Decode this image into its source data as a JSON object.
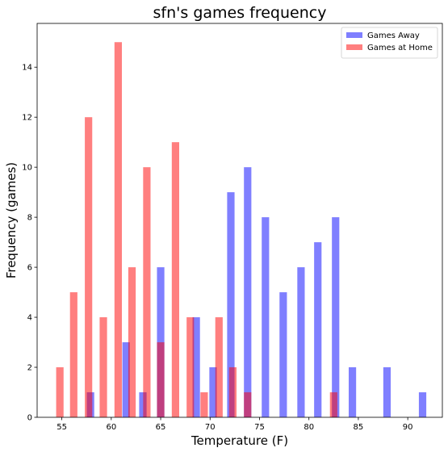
{
  "chart_data": {
    "type": "bar",
    "title": "sfn's games frequency",
    "xlabel": "Temperature (F)",
    "ylabel": "Frequency (games)",
    "xlim": [
      52.5,
      93.5
    ],
    "ylim": [
      0,
      15.75
    ],
    "xticks": [
      55,
      60,
      65,
      70,
      75,
      80,
      85,
      90
    ],
    "yticks": [
      0,
      2,
      4,
      6,
      8,
      10,
      12,
      14
    ],
    "legend_position": "top-right",
    "bar_width": 0.75,
    "series": [
      {
        "name": "Games Away",
        "color": "#0000ff",
        "opacity": 0.5,
        "x": [
          57.9,
          61.5,
          63.2,
          65.0,
          68.6,
          70.3,
          72.1,
          73.8,
          75.6,
          77.4,
          79.2,
          80.9,
          82.7,
          84.4,
          87.9,
          91.5
        ],
        "values": [
          1,
          3,
          1,
          6,
          4,
          2,
          9,
          10,
          8,
          5,
          6,
          7,
          8,
          2,
          2,
          1
        ]
      },
      {
        "name": "Games at Home",
        "color": "#ff0000",
        "opacity": 0.5,
        "x": [
          54.8,
          56.2,
          57.7,
          59.2,
          60.7,
          62.1,
          63.6,
          65.0,
          66.5,
          68.0,
          69.4,
          70.9,
          72.3,
          73.8,
          82.5
        ],
        "values": [
          2,
          5,
          12,
          4,
          15,
          6,
          10,
          3,
          11,
          4,
          1,
          4,
          2,
          1,
          1
        ]
      }
    ]
  }
}
